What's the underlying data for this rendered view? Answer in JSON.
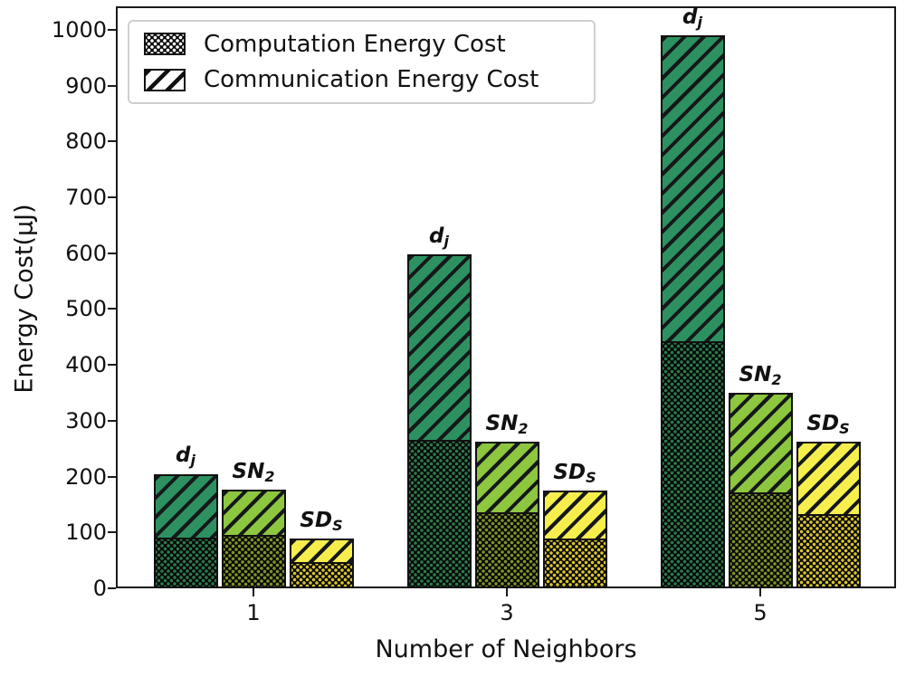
{
  "chart_data": {
    "type": "bar",
    "stacked": true,
    "title": "",
    "xlabel": "Number of Neighbors",
    "ylabel": "Energy Cost(μJ)",
    "categories": [
      "1",
      "3",
      "5"
    ],
    "yticks": [
      0,
      100,
      200,
      300,
      400,
      500,
      600,
      700,
      800,
      900,
      1000
    ],
    "ylim": [
      0,
      1042
    ],
    "grid": false,
    "legend_position": "upper left",
    "legend": [
      {
        "label": "Computation Energy Cost",
        "pattern": "dense-dots",
        "swatch": "white dots on black"
      },
      {
        "label": "Communication Energy Cost",
        "pattern": "diagonal-hatch",
        "swatch": "black stripes on white"
      }
    ],
    "series": [
      {
        "name": "dj",
        "label_main": "d",
        "label_sub": "j",
        "hatch_color": "#2d9060",
        "dot_color": "#2b7a49",
        "computation": [
          88,
          264,
          440
        ],
        "communication": [
          117,
          334,
          550
        ],
        "totals": [
          205,
          598,
          990
        ]
      },
      {
        "name": "SN2",
        "label_main": "SN",
        "label_sub": "2",
        "hatch_color": "#8dc63f",
        "dot_color": "#7d9428",
        "computation": [
          95,
          134,
          170
        ],
        "communication": [
          82,
          128,
          180
        ],
        "totals": [
          177,
          262,
          350
        ]
      },
      {
        "name": "SDS",
        "label_main": "SD",
        "label_sub": "S",
        "hatch_color": "#f6ee4d",
        "dot_color": "#d8c530",
        "computation": [
          46,
          88,
          132
        ],
        "communication": [
          43,
          87,
          131
        ],
        "totals": [
          89,
          175,
          263
        ]
      }
    ],
    "outline_color": "#111111"
  }
}
